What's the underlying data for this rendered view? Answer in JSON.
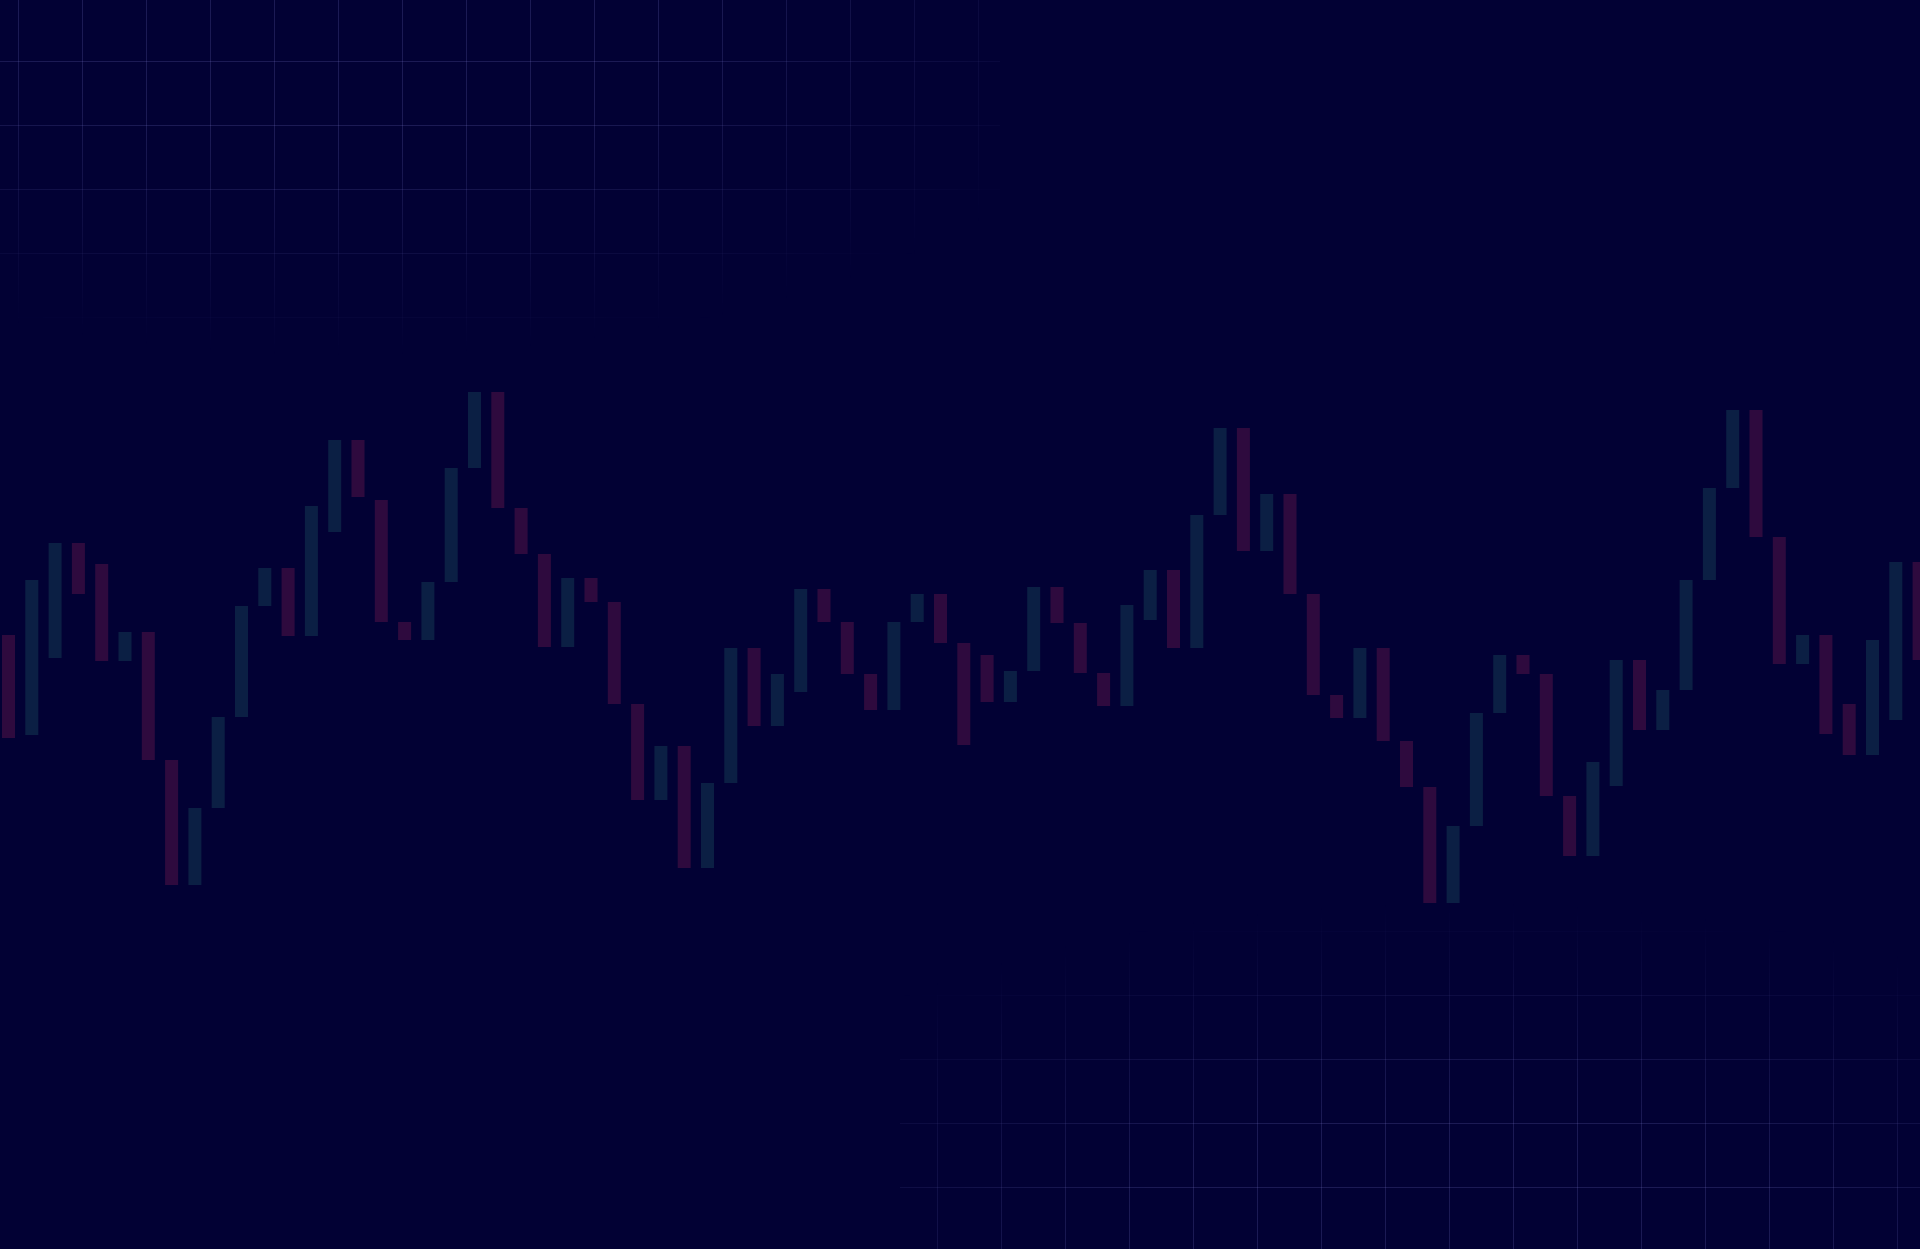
{
  "background": {
    "color": "#020134",
    "grid_color": "#7878c8"
  },
  "chart": {
    "bullish_color": "#0b1f44",
    "bearish_color": "#2e0a3e",
    "candles": [
      [
        "d",
        635,
        738
      ],
      [
        "u",
        580,
        735
      ],
      [
        "u",
        543,
        658
      ],
      [
        "d",
        543,
        594
      ],
      [
        "d",
        564,
        661
      ],
      [
        "u",
        632,
        661
      ],
      [
        "d",
        632,
        760
      ],
      [
        "d",
        760,
        885
      ],
      [
        "u",
        808,
        885
      ],
      [
        "u",
        717,
        808
      ],
      [
        "u",
        606,
        717
      ],
      [
        "u",
        568,
        606
      ],
      [
        "d",
        568,
        636
      ],
      [
        "u",
        506,
        636
      ],
      [
        "u",
        440,
        532
      ],
      [
        "d",
        440,
        497
      ],
      [
        "d",
        500,
        622
      ],
      [
        "d",
        622,
        640
      ],
      [
        "u",
        582,
        640
      ],
      [
        "u",
        468,
        582
      ],
      [
        "u",
        392,
        468
      ],
      [
        "d",
        392,
        508
      ],
      [
        "d",
        508,
        554
      ],
      [
        "d",
        554,
        647
      ],
      [
        "u",
        578,
        647
      ],
      [
        "d",
        578,
        602
      ],
      [
        "d",
        602,
        704
      ],
      [
        "d",
        704,
        800
      ],
      [
        "u",
        746,
        800
      ],
      [
        "d",
        746,
        868
      ],
      [
        "u",
        783,
        868
      ],
      [
        "u",
        648,
        783
      ],
      [
        "d",
        648,
        726
      ],
      [
        "u",
        674,
        726
      ],
      [
        "u",
        589,
        692
      ],
      [
        "d",
        589,
        622
      ],
      [
        "d",
        622,
        674
      ],
      [
        "d",
        674,
        710
      ],
      [
        "u",
        622,
        710
      ],
      [
        "u",
        594,
        622
      ],
      [
        "d",
        594,
        643
      ],
      [
        "d",
        643,
        745
      ],
      [
        "d",
        655,
        702
      ],
      [
        "u",
        671,
        702
      ],
      [
        "u",
        587,
        671
      ],
      [
        "d",
        587,
        623
      ],
      [
        "d",
        623,
        673
      ],
      [
        "d",
        673,
        706
      ],
      [
        "u",
        605,
        706
      ],
      [
        "u",
        570,
        620
      ],
      [
        "d",
        570,
        648
      ],
      [
        "u",
        515,
        648
      ],
      [
        "u",
        428,
        515
      ],
      [
        "d",
        428,
        551
      ],
      [
        "u",
        494,
        551
      ],
      [
        "d",
        494,
        594
      ],
      [
        "d",
        594,
        695
      ],
      [
        "d",
        695,
        718
      ],
      [
        "u",
        648,
        718
      ],
      [
        "d",
        648,
        741
      ],
      [
        "d",
        741,
        787
      ],
      [
        "d",
        787,
        903
      ],
      [
        "u",
        826,
        903
      ],
      [
        "u",
        713,
        826
      ],
      [
        "u",
        655,
        713
      ],
      [
        "d",
        655,
        674
      ],
      [
        "d",
        674,
        796
      ],
      [
        "d",
        796,
        856
      ],
      [
        "u",
        762,
        856
      ],
      [
        "u",
        660,
        786
      ],
      [
        "d",
        660,
        730
      ],
      [
        "u",
        690,
        730
      ],
      [
        "u",
        580,
        690
      ],
      [
        "u",
        488,
        580
      ],
      [
        "u",
        410,
        488
      ],
      [
        "d",
        410,
        537
      ],
      [
        "d",
        537,
        664
      ],
      [
        "u",
        635,
        664
      ],
      [
        "d",
        635,
        734
      ],
      [
        "d",
        704,
        755
      ],
      [
        "u",
        640,
        755
      ],
      [
        "u",
        562,
        720
      ],
      [
        "d",
        562,
        660
      ]
    ]
  }
}
